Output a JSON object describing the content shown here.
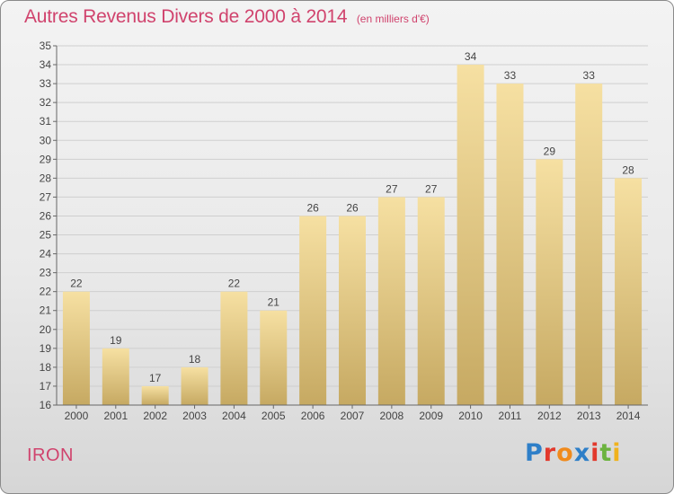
{
  "title": "Autres Revenus Divers de 2000 à 2014",
  "unit": "(en milliers d'€)",
  "location": "IRON",
  "brand": {
    "text": "Proxiti",
    "colors": [
      "#2e7fc8",
      "#e2392c",
      "#f08a1c",
      "#2e7fc8",
      "#e2392c",
      "#6cb33e",
      "#f0b21c"
    ]
  },
  "chart_data": {
    "type": "bar",
    "categories": [
      "2000",
      "2001",
      "2002",
      "2003",
      "2004",
      "2005",
      "2006",
      "2007",
      "2008",
      "2009",
      "2010",
      "2011",
      "2012",
      "2013",
      "2014"
    ],
    "values": [
      22,
      19,
      17,
      18,
      22,
      21,
      26,
      26,
      27,
      27,
      34,
      33,
      29,
      33,
      28
    ],
    "ylim": [
      16,
      35
    ],
    "yticks": [
      16,
      17,
      18,
      19,
      20,
      21,
      22,
      23,
      24,
      25,
      26,
      27,
      28,
      29,
      30,
      31,
      32,
      33,
      34,
      35
    ],
    "grid": true,
    "data_labels": true,
    "bar_color_top": "#f6e0a2",
    "bar_color_bottom": "#c6a962"
  }
}
